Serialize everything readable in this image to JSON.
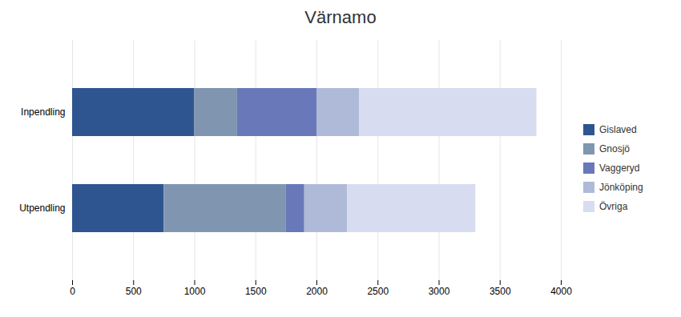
{
  "chart_data": {
    "type": "bar",
    "title": "Värnamo",
    "orientation": "horizontal",
    "stacked": true,
    "categories": [
      "Inpendling",
      "Utpendling"
    ],
    "series": [
      {
        "name": "Gislaved",
        "values": [
          1000,
          750
        ],
        "color": "#2E5590"
      },
      {
        "name": "Gnosjö",
        "values": [
          350,
          1000
        ],
        "color": "#8096B0"
      },
      {
        "name": "Vaggeryd",
        "values": [
          650,
          150
        ],
        "color": "#6878B8"
      },
      {
        "name": "Jönköping",
        "values": [
          350,
          350
        ],
        "color": "#AEBAD8"
      },
      {
        "name": "Övriga",
        "values": [
          1450,
          1050
        ],
        "color": "#D8DCF0"
      }
    ],
    "xlim": [
      0,
      4000
    ],
    "xticks": [
      0,
      500,
      1000,
      1500,
      2000,
      2500,
      3000,
      3500,
      4000
    ],
    "grid": true,
    "legend": "right"
  }
}
